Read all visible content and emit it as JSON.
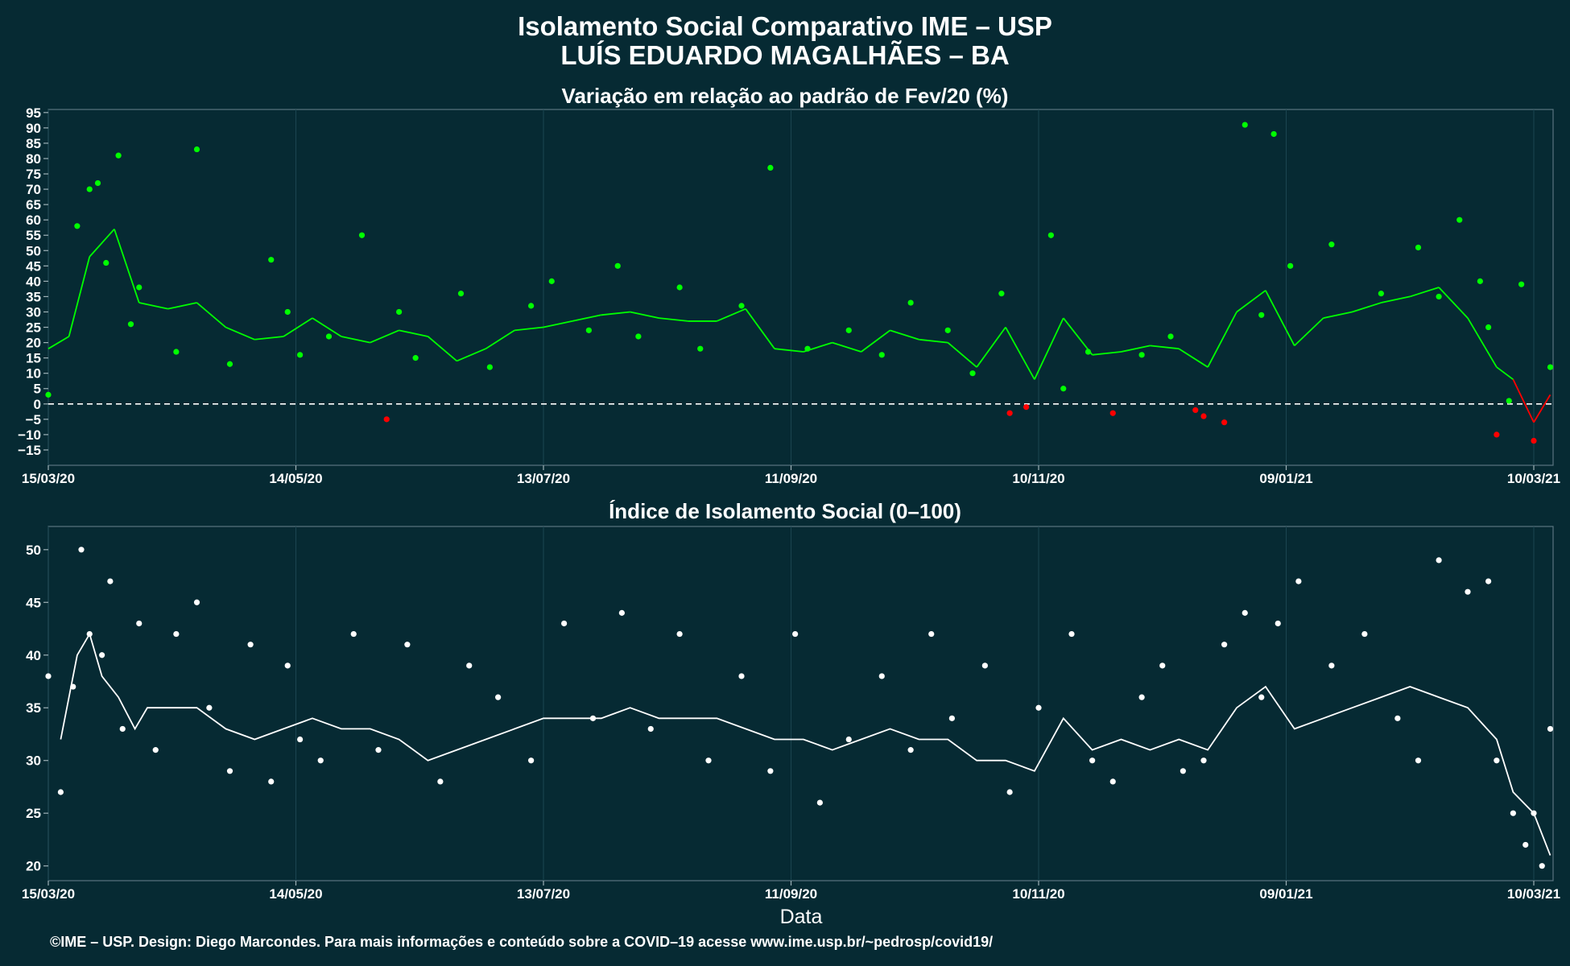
{
  "title_line1": "Isolamento Social Comparativo IME – USP",
  "title_line2": "LUÍS EDUARDO MAGALHÃES – BA",
  "xlabel": "Data",
  "footer": "©IME – USP. Design: Diego Marcondes. Para mais informações e conteúdo sobre a COVID–19 acesse www.ime.usp.br/~pedrosp/covid19/",
  "colors": {
    "background": "#062a33",
    "positive": "#00ff00",
    "negative": "#ff0000",
    "index_series": "#ffffff",
    "grid": "#1b4550"
  },
  "chart_data": [
    {
      "type": "scatter",
      "title": "Variação em relação ao padrão de Fev/20 (%)",
      "x_start": "15/03/20",
      "x_end": "10/03/21",
      "x_tick_labels": [
        "15/03/20",
        "14/05/20",
        "13/07/20",
        "11/09/20",
        "10/11/20",
        "09/01/21",
        "10/03/21"
      ],
      "y_ticks": [
        -15,
        -10,
        -5,
        0,
        5,
        10,
        15,
        20,
        25,
        30,
        35,
        40,
        45,
        50,
        55,
        60,
        65,
        70,
        75,
        80,
        85,
        90,
        95
      ],
      "ylim": [
        -20,
        96
      ],
      "reference_line": 0,
      "series": [
        {
          "kind": "points",
          "color_rule": "green when >= 0, red when < 0",
          "x": [
            "15/03/20",
            "22/03/20",
            "25/03/20",
            "27/03/20",
            "29/03/20",
            "01/04/20",
            "04/04/20",
            "06/04/20",
            "15/04/20",
            "20/04/20",
            "28/04/20",
            "08/05/20",
            "12/05/20",
            "15/05/20",
            "22/05/20",
            "30/05/20",
            "05/06/20",
            "08/06/20",
            "12/06/20",
            "23/06/20",
            "30/06/20",
            "10/07/20",
            "15/07/20",
            "24/07/20",
            "31/07/20",
            "05/08/20",
            "15/08/20",
            "20/08/20",
            "30/08/20",
            "06/09/20",
            "15/09/20",
            "25/09/20",
            "03/10/20",
            "10/10/20",
            "19/10/20",
            "25/10/20",
            "01/11/20",
            "03/11/20",
            "07/11/20",
            "13/11/20",
            "16/11/20",
            "22/11/20",
            "28/11/20",
            "05/12/20",
            "12/12/20",
            "18/12/20",
            "20/12/20",
            "25/12/20",
            "30/12/20",
            "03/01/21",
            "06/01/21",
            "10/01/21",
            "20/01/21",
            "01/02/21",
            "10/02/21",
            "15/02/21",
            "20/02/21",
            "25/02/21",
            "27/02/21",
            "01/03/21",
            "04/03/21",
            "07/03/21",
            "10/03/21",
            "14/03/21"
          ],
          "y": [
            3,
            58,
            70,
            72,
            46,
            81,
            26,
            38,
            17,
            83,
            13,
            47,
            30,
            16,
            22,
            55,
            -5,
            30,
            15,
            36,
            12,
            32,
            40,
            24,
            45,
            22,
            38,
            18,
            32,
            77,
            18,
            24,
            16,
            33,
            24,
            10,
            36,
            -3,
            -1,
            55,
            5,
            17,
            -3,
            16,
            22,
            -2,
            -4,
            -6,
            91,
            29,
            88,
            45,
            52,
            36,
            51,
            35,
            60,
            40,
            25,
            -10,
            1,
            39,
            -12,
            12
          ]
        },
        {
          "kind": "line",
          "name": "",
          "color_rule": "green when >= 0, red when < 0",
          "x": [
            "15/03/20",
            "20/03/20",
            "25/03/20",
            "31/03/20",
            "06/04/20",
            "13/04/20",
            "20/04/20",
            "27/04/20",
            "04/05/20",
            "11/05/20",
            "18/05/20",
            "25/05/20",
            "01/06/20",
            "08/06/20",
            "15/06/20",
            "22/06/20",
            "29/06/20",
            "06/07/20",
            "13/07/20",
            "20/07/20",
            "27/07/20",
            "03/08/20",
            "10/08/20",
            "17/08/20",
            "24/08/20",
            "31/08/20",
            "07/09/20",
            "14/09/20",
            "21/09/20",
            "28/09/20",
            "05/10/20",
            "12/10/20",
            "19/10/20",
            "26/10/20",
            "02/11/20",
            "09/11/20",
            "16/11/20",
            "23/11/20",
            "30/11/20",
            "07/12/20",
            "14/12/20",
            "21/12/20",
            "28/12/20",
            "04/01/21",
            "11/01/21",
            "18/01/21",
            "25/01/21",
            "01/02/21",
            "08/02/21",
            "15/02/21",
            "22/02/21",
            "01/03/21",
            "05/03/21",
            "10/03/21",
            "14/03/21"
          ],
          "y": [
            18,
            22,
            48,
            57,
            33,
            31,
            33,
            25,
            21,
            22,
            28,
            22,
            20,
            24,
            22,
            14,
            18,
            24,
            25,
            27,
            29,
            30,
            28,
            27,
            27,
            31,
            18,
            17,
            20,
            17,
            24,
            21,
            20,
            12,
            25,
            8,
            28,
            16,
            17,
            19,
            18,
            12,
            30,
            37,
            19,
            28,
            30,
            33,
            35,
            38,
            28,
            12,
            8,
            -6,
            3
          ]
        }
      ]
    },
    {
      "type": "scatter",
      "title": "Índice de Isolamento Social (0–100)",
      "x_start": "15/03/20",
      "x_end": "10/03/21",
      "x_tick_labels": [
        "15/03/20",
        "14/05/20",
        "13/07/20",
        "11/09/20",
        "10/11/20",
        "09/01/21",
        "10/03/21"
      ],
      "y_ticks": [
        20,
        25,
        30,
        35,
        40,
        45,
        50
      ],
      "ylim": [
        18.6,
        52.2
      ],
      "series": [
        {
          "kind": "points",
          "color": "#ffffff",
          "x": [
            "15/03/20",
            "18/03/20",
            "21/03/20",
            "23/03/20",
            "25/03/20",
            "28/03/20",
            "30/03/20",
            "02/04/20",
            "06/04/20",
            "10/04/20",
            "15/04/20",
            "20/04/20",
            "23/04/20",
            "28/04/20",
            "03/05/20",
            "08/05/20",
            "12/05/20",
            "15/05/20",
            "20/05/20",
            "28/05/20",
            "03/06/20",
            "10/06/20",
            "18/06/20",
            "25/06/20",
            "02/07/20",
            "10/07/20",
            "18/07/20",
            "25/07/20",
            "01/08/20",
            "08/08/20",
            "15/08/20",
            "22/08/20",
            "30/08/20",
            "06/09/20",
            "12/09/20",
            "18/09/20",
            "25/09/20",
            "03/10/20",
            "10/10/20",
            "15/10/20",
            "20/10/20",
            "28/10/20",
            "03/11/20",
            "10/11/20",
            "18/11/20",
            "23/11/20",
            "28/11/20",
            "05/12/20",
            "10/12/20",
            "15/12/20",
            "20/12/20",
            "25/12/20",
            "30/12/20",
            "03/01/21",
            "07/01/21",
            "12/01/21",
            "20/01/21",
            "28/01/21",
            "05/02/21",
            "10/02/21",
            "15/02/21",
            "22/02/21",
            "27/02/21",
            "01/03/21",
            "05/03/21",
            "08/03/21",
            "10/03/21",
            "12/03/21",
            "14/03/21"
          ],
          "y": [
            38,
            27,
            37,
            50,
            42,
            40,
            47,
            33,
            43,
            31,
            42,
            45,
            35,
            29,
            41,
            28,
            39,
            32,
            30,
            42,
            31,
            41,
            28,
            39,
            36,
            30,
            43,
            34,
            44,
            33,
            42,
            30,
            38,
            29,
            42,
            26,
            32,
            38,
            31,
            42,
            34,
            39,
            27,
            35,
            42,
            30,
            28,
            36,
            39,
            29,
            30,
            41,
            44,
            36,
            43,
            47,
            39,
            42,
            34,
            30,
            49,
            46,
            47,
            30,
            25,
            22,
            25,
            20,
            33
          ]
        },
        {
          "kind": "line",
          "name": "",
          "color": "#ffffff",
          "x": [
            "18/03/20",
            "22/03/20",
            "25/03/20",
            "28/03/20",
            "01/04/20",
            "05/04/20",
            "08/04/20",
            "13/04/20",
            "20/04/20",
            "27/04/20",
            "04/05/20",
            "11/05/20",
            "18/05/20",
            "25/05/20",
            "01/06/20",
            "08/06/20",
            "15/06/20",
            "22/06/20",
            "29/06/20",
            "06/07/20",
            "13/07/20",
            "20/07/20",
            "27/07/20",
            "03/08/20",
            "10/08/20",
            "17/08/20",
            "24/08/20",
            "31/08/20",
            "07/09/20",
            "14/09/20",
            "21/09/20",
            "28/09/20",
            "05/10/20",
            "12/10/20",
            "19/10/20",
            "26/10/20",
            "02/11/20",
            "09/11/20",
            "16/11/20",
            "23/11/20",
            "30/11/20",
            "07/12/20",
            "14/12/20",
            "21/12/20",
            "28/12/20",
            "04/01/21",
            "11/01/21",
            "18/01/21",
            "25/01/21",
            "01/02/21",
            "08/02/21",
            "15/02/21",
            "22/02/21",
            "01/03/21",
            "05/03/21",
            "10/03/21",
            "14/03/21"
          ],
          "y": [
            32,
            40,
            42,
            38,
            36,
            33,
            35,
            35,
            35,
            33,
            32,
            33,
            34,
            33,
            33,
            32,
            30,
            31,
            32,
            33,
            34,
            34,
            34,
            35,
            34,
            34,
            34,
            33,
            32,
            32,
            31,
            32,
            33,
            32,
            32,
            30,
            30,
            29,
            34,
            31,
            32,
            31,
            32,
            31,
            35,
            37,
            33,
            34,
            35,
            36,
            37,
            36,
            35,
            32,
            27,
            25,
            21
          ]
        }
      ]
    }
  ]
}
